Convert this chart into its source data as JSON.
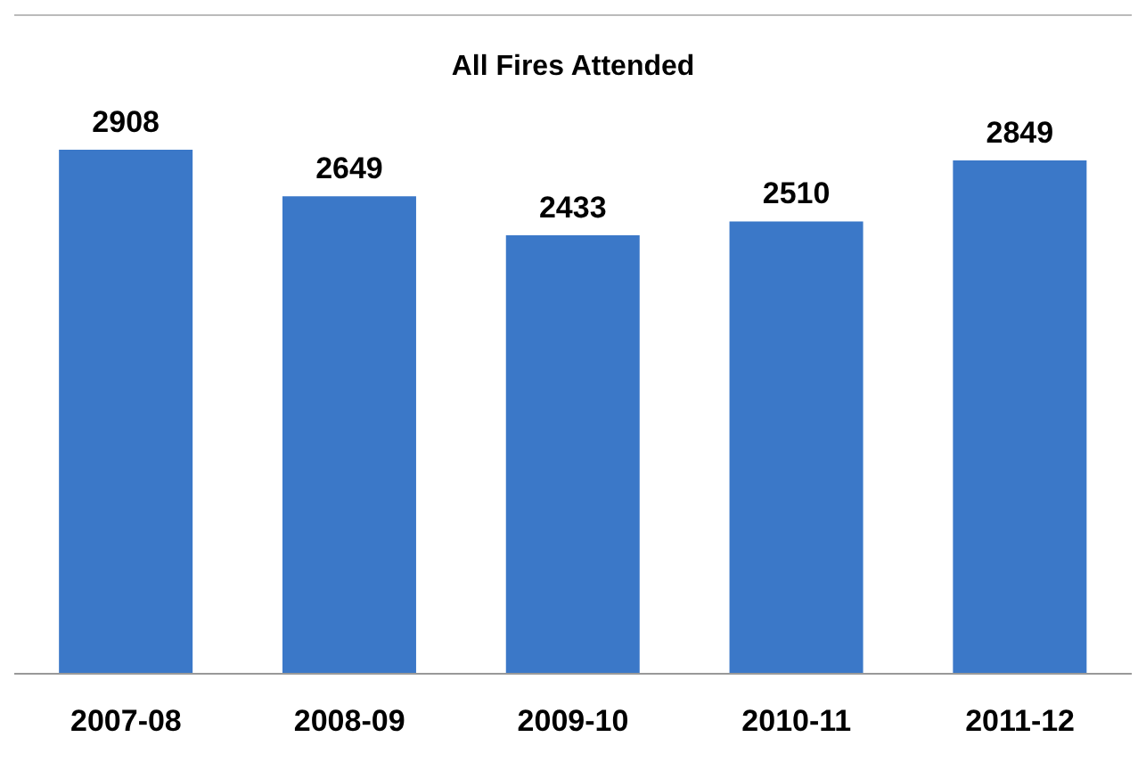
{
  "chart_data": {
    "type": "bar",
    "title": "All Fires Attended",
    "categories": [
      "2007-08",
      "2008-09",
      "2009-10",
      "2010-11",
      "2011-12"
    ],
    "values": [
      2908,
      2649,
      2433,
      2510,
      2849
    ],
    "color": "#3b78c8",
    "data_labels": true,
    "grid": false
  }
}
